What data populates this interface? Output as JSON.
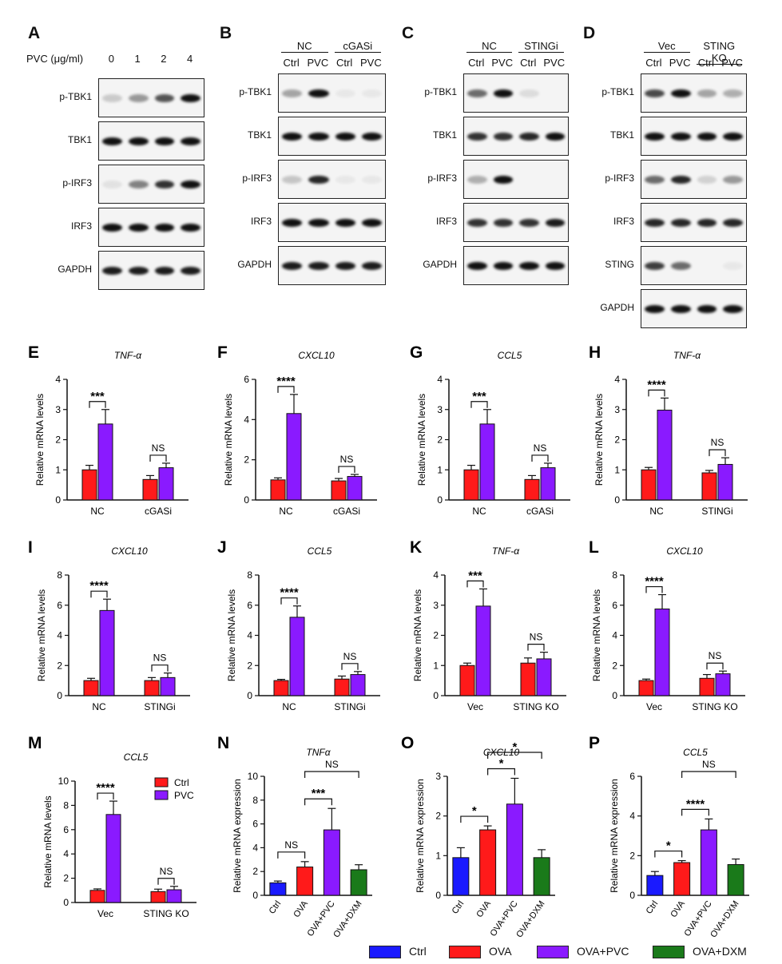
{
  "blots": [
    {
      "label": "A",
      "header": {
        "prefix": "PVC (μg/ml)",
        "cols": [
          "0",
          "1",
          "2",
          "4"
        ]
      },
      "rows": [
        {
          "name": "p-TBK1",
          "int": [
            0.18,
            0.4,
            0.7,
            1.0
          ]
        },
        {
          "name": "TBK1",
          "int": [
            1,
            1,
            1,
            1
          ]
        },
        {
          "name": "p-IRF3",
          "int": [
            0.08,
            0.5,
            0.85,
            1.0
          ]
        },
        {
          "name": "IRF3",
          "int": [
            1,
            1,
            1,
            1
          ]
        },
        {
          "name": "GAPDH",
          "int": [
            0.95,
            0.95,
            0.95,
            0.95
          ]
        }
      ]
    },
    {
      "label": "B",
      "groups": [
        "NC",
        "cGASi"
      ],
      "cols": [
        "Ctrl",
        "PVC",
        "Ctrl",
        "PVC"
      ],
      "rows": [
        {
          "name": "p-TBK1",
          "int": [
            0.35,
            1.0,
            0.05,
            0.05
          ]
        },
        {
          "name": "TBK1",
          "int": [
            1,
            1,
            1,
            1
          ]
        },
        {
          "name": "p-IRF3",
          "int": [
            0.2,
            0.9,
            0.05,
            0.05
          ]
        },
        {
          "name": "IRF3",
          "int": [
            1,
            1,
            1,
            1
          ]
        },
        {
          "name": "GAPDH",
          "int": [
            0.95,
            0.95,
            0.95,
            0.95
          ]
        }
      ]
    },
    {
      "label": "C",
      "groups": [
        "NC",
        "STINGi"
      ],
      "cols": [
        "Ctrl",
        "PVC",
        "Ctrl",
        "PVC"
      ],
      "rows": [
        {
          "name": "p-TBK1",
          "int": [
            0.6,
            1.0,
            0.1,
            0
          ]
        },
        {
          "name": "TBK1",
          "int": [
            0.85,
            0.85,
            0.9,
            1
          ]
        },
        {
          "name": "p-IRF3",
          "int": [
            0.3,
            1.0,
            0,
            0
          ]
        },
        {
          "name": "IRF3",
          "int": [
            0.85,
            0.85,
            0.85,
            0.95
          ]
        },
        {
          "name": "GAPDH",
          "int": [
            1,
            1,
            1,
            1
          ]
        }
      ]
    },
    {
      "label": "D",
      "groups": [
        "Vec",
        "STING KO"
      ],
      "cols": [
        "Ctrl",
        "PVC",
        "Ctrl",
        "PVC"
      ],
      "rows": [
        {
          "name": "p-TBK1",
          "int": [
            0.75,
            1.0,
            0.35,
            0.3
          ]
        },
        {
          "name": "TBK1",
          "int": [
            1,
            1,
            1,
            1
          ]
        },
        {
          "name": "p-IRF3",
          "int": [
            0.6,
            0.9,
            0.15,
            0.4
          ]
        },
        {
          "name": "IRF3",
          "int": [
            0.9,
            0.9,
            0.9,
            0.9
          ]
        },
        {
          "name": "STING",
          "int": [
            0.8,
            0.6,
            0,
            0.05
          ]
        },
        {
          "name": "GAPDH",
          "int": [
            1,
            1,
            1,
            1
          ]
        }
      ]
    }
  ],
  "chart_data": [
    {
      "label": "E",
      "type": "bar",
      "title": "TNF-α",
      "ylabel": "Relative mRNA levels",
      "ylim": [
        0,
        4
      ],
      "yticks": [
        "0",
        "1",
        "2",
        "3",
        "4"
      ],
      "categories": [
        "NC",
        "cGASi"
      ],
      "series": [
        {
          "name": "Ctrl",
          "values": [
            1.0,
            0.68
          ],
          "err": [
            0.15,
            0.13
          ]
        },
        {
          "name": "PVC",
          "values": [
            2.52,
            1.07
          ],
          "err": [
            0.48,
            0.15
          ]
        }
      ],
      "sig": [
        "***",
        "NS"
      ]
    },
    {
      "label": "F",
      "type": "bar",
      "title": "CXCL10",
      "ylabel": "Relative mRNA levels",
      "ylim": [
        0,
        6
      ],
      "yticks": [
        "0",
        "2",
        "4",
        "6"
      ],
      "categories": [
        "NC",
        "cGASi"
      ],
      "series": [
        {
          "name": "Ctrl",
          "values": [
            1.0,
            0.95
          ],
          "err": [
            0.1,
            0.12
          ]
        },
        {
          "name": "PVC",
          "values": [
            4.3,
            1.17
          ],
          "err": [
            0.95,
            0.1
          ]
        }
      ],
      "sig": [
        "****",
        "NS"
      ]
    },
    {
      "label": "G",
      "type": "bar",
      "title": "CCL5",
      "ylabel": "Relative mRNA levels",
      "ylim": [
        0,
        4
      ],
      "yticks": [
        "0",
        "1",
        "2",
        "3",
        "4"
      ],
      "categories": [
        "NC",
        "cGASi"
      ],
      "series": [
        {
          "name": "Ctrl",
          "values": [
            1.0,
            0.68
          ],
          "err": [
            0.15,
            0.13
          ]
        },
        {
          "name": "PVC",
          "values": [
            2.52,
            1.07
          ],
          "err": [
            0.48,
            0.15
          ]
        }
      ],
      "sig": [
        "***",
        "NS"
      ]
    },
    {
      "label": "H",
      "type": "bar",
      "title": "TNF-α",
      "ylabel": "Relative mRNA levels",
      "ylim": [
        0,
        4
      ],
      "yticks": [
        "0",
        "1",
        "2",
        "3",
        "4"
      ],
      "categories": [
        "NC",
        "STINGi"
      ],
      "series": [
        {
          "name": "Ctrl",
          "values": [
            1.0,
            0.9
          ],
          "err": [
            0.08,
            0.08
          ]
        },
        {
          "name": "PVC",
          "values": [
            2.98,
            1.18
          ],
          "err": [
            0.4,
            0.22
          ]
        }
      ],
      "sig": [
        "****",
        "NS"
      ]
    },
    {
      "label": "I",
      "type": "bar",
      "title": "CXCL10",
      "ylabel": "Relative mRNA levels",
      "ylim": [
        0,
        8
      ],
      "yticks": [
        "0",
        "2",
        "4",
        "6",
        "8"
      ],
      "categories": [
        "NC",
        "STINGi"
      ],
      "series": [
        {
          "name": "Ctrl",
          "values": [
            1.0,
            1.0
          ],
          "err": [
            0.15,
            0.2
          ]
        },
        {
          "name": "PVC",
          "values": [
            5.65,
            1.2
          ],
          "err": [
            0.75,
            0.3
          ]
        }
      ],
      "sig": [
        "****",
        "NS"
      ]
    },
    {
      "label": "J",
      "type": "bar",
      "title": "CCL5",
      "ylabel": "Relative mRNA levels",
      "ylim": [
        0,
        8
      ],
      "yticks": [
        "0",
        "2",
        "4",
        "6",
        "8"
      ],
      "categories": [
        "NC",
        "STINGi"
      ],
      "series": [
        {
          "name": "Ctrl",
          "values": [
            1.0,
            1.1
          ],
          "err": [
            0.08,
            0.2
          ]
        },
        {
          "name": "PVC",
          "values": [
            5.2,
            1.4
          ],
          "err": [
            0.75,
            0.2
          ]
        }
      ],
      "sig": [
        "****",
        "NS"
      ]
    },
    {
      "label": "K",
      "type": "bar",
      "title": "TNF-α",
      "ylabel": "Relative mRNA levels",
      "ylim": [
        0,
        4
      ],
      "yticks": [
        "0",
        "1",
        "2",
        "3",
        "4"
      ],
      "categories": [
        "Vec",
        "STING KO"
      ],
      "series": [
        {
          "name": "Ctrl",
          "values": [
            1.0,
            1.08
          ],
          "err": [
            0.08,
            0.17
          ]
        },
        {
          "name": "PVC",
          "values": [
            2.97,
            1.22
          ],
          "err": [
            0.57,
            0.22
          ]
        }
      ],
      "sig": [
        "***",
        "NS"
      ]
    },
    {
      "label": "L",
      "type": "bar",
      "title": "CXCL10",
      "ylabel": "Relative mRNA levels",
      "ylim": [
        0,
        8
      ],
      "yticks": [
        "0",
        "2",
        "4",
        "6",
        "8"
      ],
      "categories": [
        "Vec",
        "STING KO"
      ],
      "series": [
        {
          "name": "Ctrl",
          "values": [
            1.0,
            1.15
          ],
          "err": [
            0.1,
            0.25
          ]
        },
        {
          "name": "PVC",
          "values": [
            5.75,
            1.45
          ],
          "err": [
            0.95,
            0.18
          ]
        }
      ],
      "sig": [
        "****",
        "NS"
      ]
    },
    {
      "label": "M",
      "type": "bar",
      "title": "CCL5",
      "ylabel": "Relative mRNA levels",
      "ylim": [
        0,
        10
      ],
      "yticks": [
        "0",
        "2",
        "4",
        "6",
        "8",
        "10"
      ],
      "categories": [
        "Vec",
        "STING KO"
      ],
      "series": [
        {
          "name": "Ctrl",
          "values": [
            1.0,
            0.9
          ],
          "err": [
            0.12,
            0.2
          ]
        },
        {
          "name": "PVC",
          "values": [
            7.25,
            1.05
          ],
          "err": [
            1.1,
            0.28
          ]
        }
      ],
      "sig": [
        "****",
        "NS"
      ],
      "legend": [
        {
          "name": "Ctrl",
          "color": "#ff1a1a"
        },
        {
          "name": "PVC",
          "color": "#8a1aff"
        }
      ]
    },
    {
      "label": "N",
      "type": "bar4",
      "title": "TNFα",
      "ylabel": "Relative mRNA expression",
      "ylim": [
        0,
        10
      ],
      "yticks": [
        "0",
        "2",
        "4",
        "6",
        "8",
        "10"
      ],
      "categories": [
        "Ctrl",
        "OVA",
        "OVA+PVC",
        "OVA+DXM"
      ],
      "values": [
        1.05,
        2.38,
        5.5,
        2.15
      ],
      "err": [
        0.15,
        0.45,
        1.8,
        0.42
      ],
      "sig": [
        {
          "from": 0,
          "to": 1,
          "text": "NS"
        },
        {
          "from": 1,
          "to": 2,
          "text": "***"
        },
        {
          "from": 1,
          "to": 3,
          "text": "NS"
        }
      ]
    },
    {
      "label": "O",
      "type": "bar4",
      "title": "CXCL10",
      "ylabel": "Relative mRNA expression",
      "ylim": [
        0,
        3
      ],
      "yticks": [
        "0",
        "1",
        "2",
        "3"
      ],
      "categories": [
        "Ctrl",
        "OVA",
        "OVA+PVC",
        "OVA+DXM"
      ],
      "values": [
        0.95,
        1.65,
        2.3,
        0.95
      ],
      "err": [
        0.25,
        0.1,
        0.65,
        0.2
      ],
      "sig": [
        {
          "from": 0,
          "to": 1,
          "text": "*"
        },
        {
          "from": 1,
          "to": 2,
          "text": "*"
        },
        {
          "from": 1,
          "to": 3,
          "text": "*"
        }
      ]
    },
    {
      "label": "P",
      "type": "bar4",
      "title": "CCL5",
      "ylabel": "Relative mRNA expression",
      "ylim": [
        0,
        6
      ],
      "yticks": [
        "0",
        "2",
        "4",
        "6"
      ],
      "categories": [
        "Ctrl",
        "OVA",
        "OVA+PVC",
        "OVA+DXM"
      ],
      "values": [
        1.0,
        1.65,
        3.3,
        1.55
      ],
      "err": [
        0.2,
        0.1,
        0.55,
        0.28
      ],
      "sig": [
        {
          "from": 0,
          "to": 1,
          "text": "*"
        },
        {
          "from": 1,
          "to": 2,
          "text": "****"
        },
        {
          "from": 1,
          "to": 3,
          "text": "NS"
        }
      ]
    }
  ],
  "bottom_legend": [
    {
      "name": "Ctrl",
      "color": "#1a1aff"
    },
    {
      "name": "OVA",
      "color": "#ff1a1a"
    },
    {
      "name": "OVA+PVC",
      "color": "#8a1aff"
    },
    {
      "name": "OVA+DXM",
      "color": "#1a7a1a"
    }
  ],
  "colors": {
    "ctrl": "#ff1a1a",
    "pvc": "#8a1aff",
    "blue": "#1a1aff",
    "green": "#1a7a1a"
  }
}
